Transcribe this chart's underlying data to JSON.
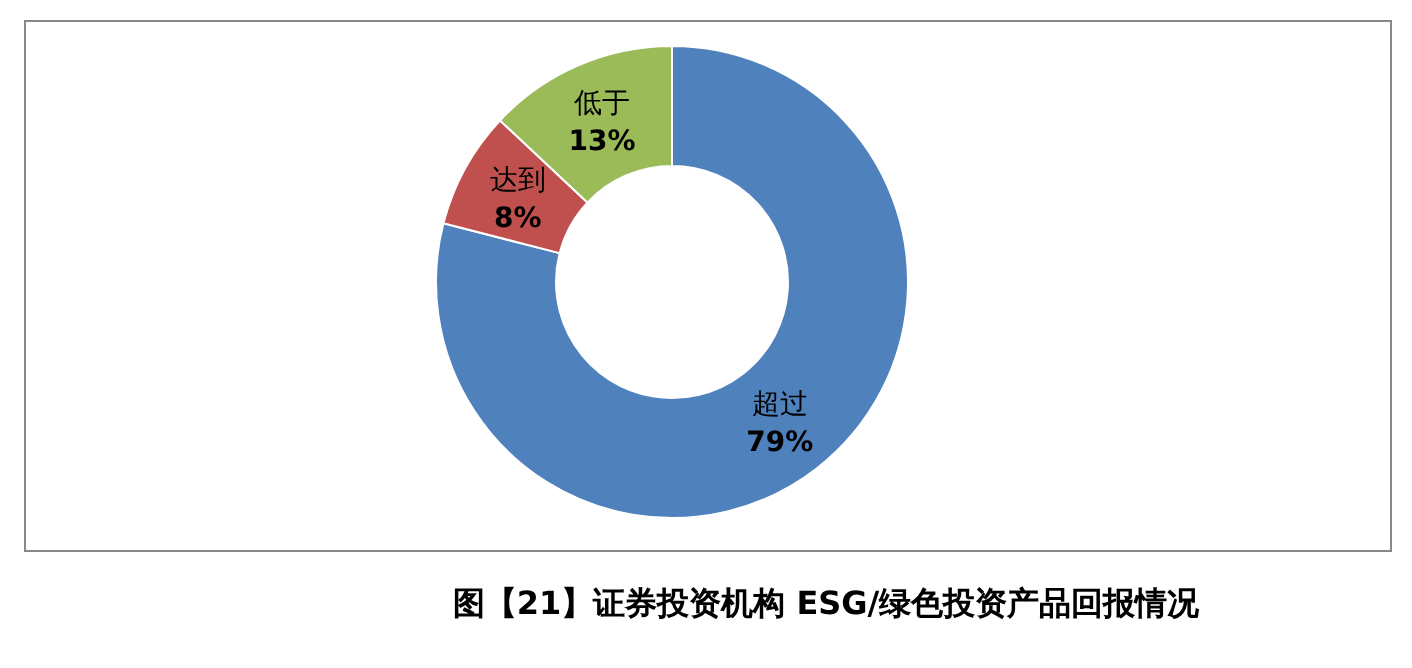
{
  "chart_data": {
    "type": "donut",
    "title": "图【21】证券投资机构 ESG/绿色投资产品回报情况",
    "categories": [
      "超过",
      "达到",
      "低于"
    ],
    "values": [
      79,
      8,
      13
    ],
    "value_labels": [
      "79%",
      "8%",
      "13%"
    ],
    "colors": [
      "#4f81bd",
      "#c0504d",
      "#9bbb59"
    ]
  }
}
